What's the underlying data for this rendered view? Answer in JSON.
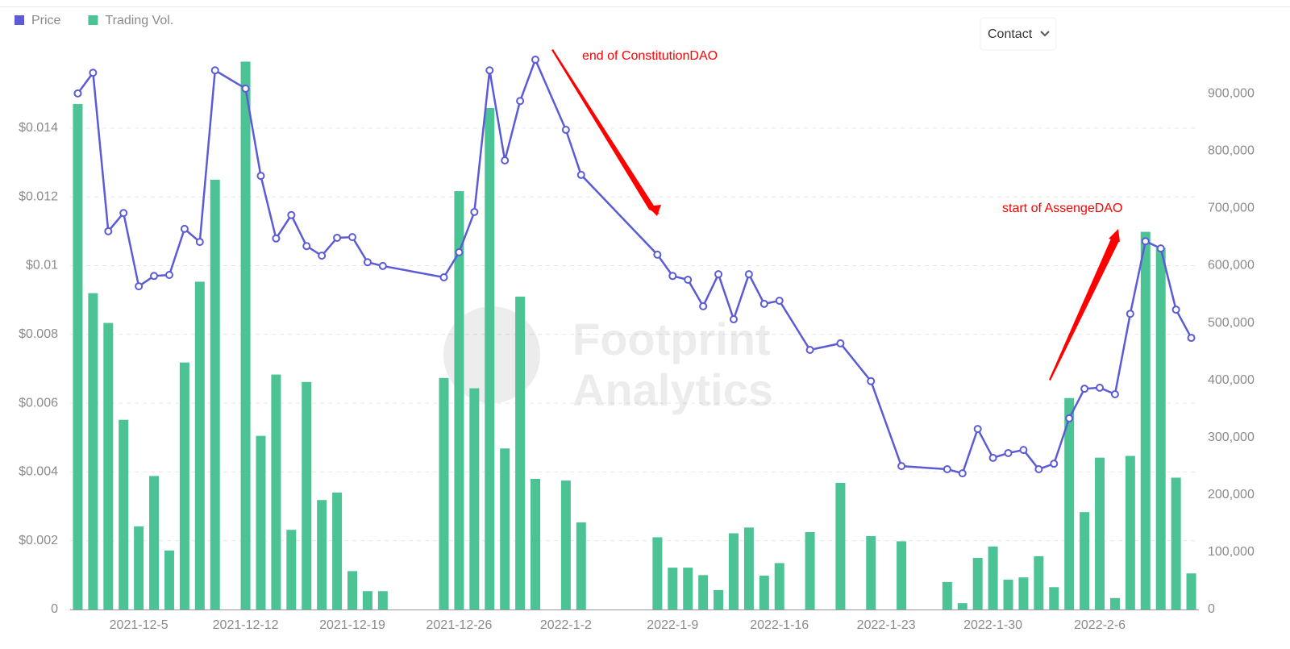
{
  "chart_data": {
    "type": "combo",
    "legend": "top-left",
    "grid": true,
    "connect_nulls": true,
    "contact_button": "Contact",
    "watermark": [
      "Footprint",
      "Analytics"
    ],
    "annotations": [
      {
        "text": "end of ConstitutionDAO",
        "color": "#ff0000"
      },
      {
        "text": "start of AssengeDAO",
        "color": "#ff0000"
      }
    ],
    "categories": [
      null,
      null,
      null,
      null,
      "2021-12-5",
      null,
      null,
      null,
      null,
      null,
      null,
      "2021-12-12",
      null,
      null,
      null,
      null,
      null,
      null,
      "2021-12-19",
      null,
      null,
      null,
      null,
      null,
      null,
      "2021-12-26",
      null,
      null,
      null,
      null,
      null,
      null,
      "2022-1-2",
      null,
      null,
      null,
      null,
      null,
      null,
      "2022-1-9",
      null,
      null,
      null,
      null,
      null,
      null,
      "2022-1-16",
      null,
      null,
      null,
      null,
      null,
      null,
      "2022-1-23",
      null,
      null,
      null,
      null,
      null,
      null,
      "2022-1-30",
      null,
      null,
      null,
      null,
      null,
      null,
      "2022-2-6",
      null,
      null,
      null,
      null,
      null,
      null
    ],
    "series": [
      {
        "name": "Price",
        "type": "line",
        "color": "#5b5bd6",
        "axis": "y",
        "values": [
          0.01501,
          0.01561,
          0.011,
          0.01153,
          0.0094,
          0.0097,
          0.00973,
          0.01107,
          0.01069,
          0.01568,
          null,
          0.01515,
          0.01261,
          0.01079,
          0.01147,
          0.01057,
          0.01029,
          0.01081,
          0.01083,
          0.0101,
          0.00999,
          null,
          null,
          null,
          0.00966,
          0.01039,
          0.01156,
          0.01568,
          0.01306,
          0.01479,
          0.01599,
          null,
          0.01395,
          0.01264,
          null,
          null,
          null,
          null,
          0.01032,
          0.0097,
          0.00959,
          0.00882,
          0.00975,
          0.00844,
          0.00975,
          0.00889,
          0.00898,
          null,
          0.00755,
          null,
          0.00774,
          null,
          0.00664,
          null,
          0.00417,
          null,
          null,
          0.00408,
          0.00396,
          0.00525,
          0.00441,
          0.00455,
          0.00464,
          0.00408,
          0.00424,
          0.00556,
          0.00642,
          0.00645,
          0.00626,
          0.0086,
          0.01071,
          0.0105,
          0.00872,
          0.0079
        ]
      },
      {
        "name": "Trading Vol.",
        "type": "bar",
        "color": "#4cc394",
        "axis": "y2",
        "values": [
          882000,
          552000,
          500000,
          331000,
          145000,
          233000,
          103000,
          431000,
          572000,
          750000,
          null,
          956000,
          303000,
          410000,
          139000,
          397000,
          191000,
          204000,
          67000,
          32000,
          32000,
          null,
          null,
          null,
          404000,
          730000,
          386000,
          875000,
          281000,
          546000,
          228000,
          null,
          225000,
          152000,
          null,
          null,
          null,
          null,
          126000,
          73000,
          73000,
          60000,
          34000,
          133000,
          143000,
          59000,
          81000,
          null,
          135000,
          null,
          221000,
          null,
          128000,
          null,
          119000,
          null,
          null,
          48000,
          11000,
          90000,
          110000,
          52000,
          56000,
          93000,
          39000,
          369000,
          170000,
          265000,
          20000,
          268000,
          659000,
          631000,
          230000,
          63000
        ]
      }
    ],
    "ylim": [
      0,
      0.016
    ],
    "yticks": [
      0,
      {
        "value": 0.002,
        "label": "$0.002"
      },
      {
        "value": 0.004,
        "label": "$0.004"
      },
      {
        "value": 0.006,
        "label": "$0.006"
      },
      {
        "value": 0.008,
        "label": "$0.008"
      },
      {
        "value": 0.01,
        "label": "$0.01"
      },
      {
        "value": 0.012,
        "label": "$0.012"
      },
      {
        "value": 0.014,
        "label": "$0.014"
      }
    ],
    "y2lim": [
      0,
      960000
    ],
    "y2ticks": [
      0,
      {
        "value": 100000,
        "label": "100,000"
      },
      {
        "value": 200000,
        "label": "200,000"
      },
      {
        "value": 300000,
        "label": "300,000"
      },
      {
        "value": 400000,
        "label": "400,000"
      },
      {
        "value": 500000,
        "label": "500,000"
      },
      {
        "value": 600000,
        "label": "600,000"
      },
      {
        "value": 700000,
        "label": "700,000"
      },
      {
        "value": 800000,
        "label": "800,000"
      },
      {
        "value": 900000,
        "label": "900,000"
      }
    ]
  }
}
